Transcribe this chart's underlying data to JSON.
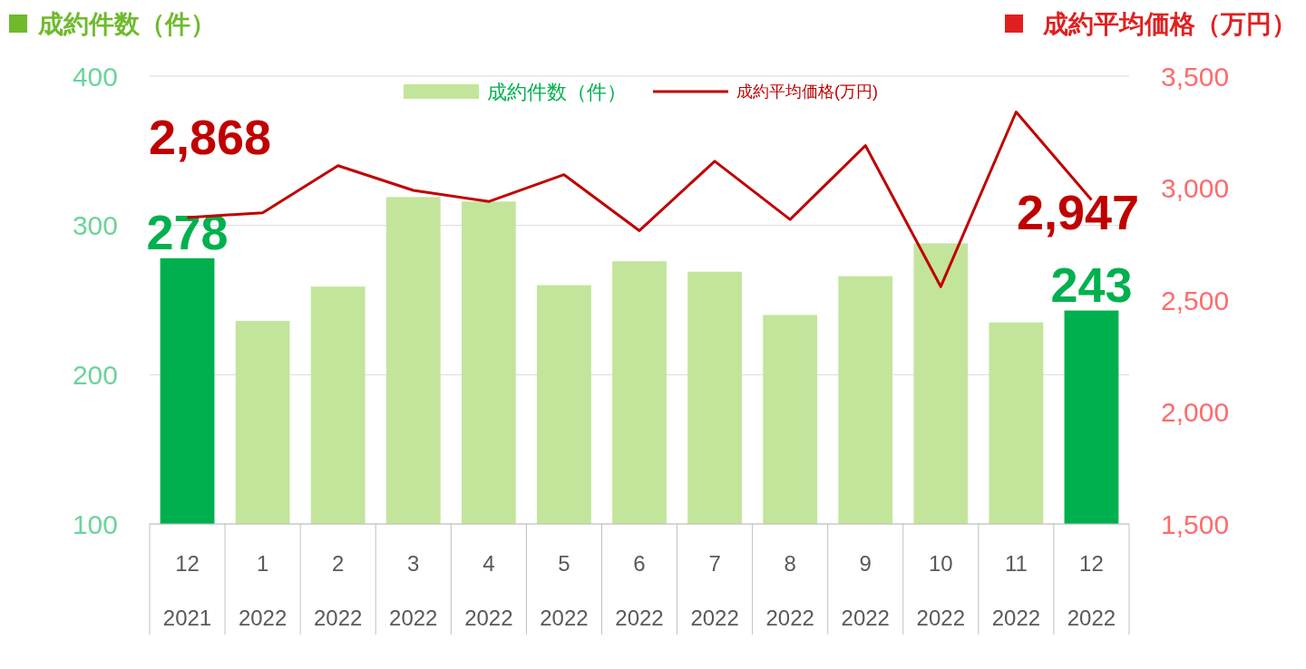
{
  "chart_data": {
    "type": "bar",
    "ylabel": "成約件数（件）",
    "y2label": "成約平均価格（万円）",
    "categories": [
      "12\n2021",
      "1\n2022",
      "2\n2022",
      "3\n2022",
      "4\n2022",
      "5\n2022",
      "6\n2022",
      "7\n2022",
      "8\n2022",
      "9\n2022",
      "10\n2022",
      "11\n2022",
      "12\n2022"
    ],
    "series": [
      {
        "name": "成約件数（件）",
        "color": "#c2e59b",
        "colors": [
          "#00b04f",
          "#c2e59b",
          "#c2e59b",
          "#c2e59b",
          "#c2e59b",
          "#c2e59b",
          "#c2e59b",
          "#c2e59b",
          "#c2e59b",
          "#c2e59b",
          "#c2e59b",
          "#c2e59b",
          "#00b04f"
        ],
        "values": [
          278,
          236,
          259,
          319,
          316,
          260,
          276,
          269,
          240,
          266,
          288,
          235,
          243
        ],
        "value_labels": [
          "278",
          null,
          null,
          null,
          null,
          null,
          null,
          null,
          null,
          null,
          null,
          null,
          "243"
        ]
      },
      {
        "name": "成約平均価格(万円)",
        "type": "line",
        "axis": "y2",
        "color": "#c00000",
        "values": [
          2868,
          2890,
          3100,
          2990,
          2940,
          3060,
          2810,
          3120,
          2860,
          3190,
          2560,
          3340,
          2947
        ],
        "value_labels": [
          "2,868",
          null,
          null,
          null,
          null,
          null,
          null,
          null,
          null,
          null,
          null,
          null,
          "2,947"
        ]
      }
    ],
    "ylim": [
      100,
      400
    ],
    "yticks": [
      100,
      200,
      300,
      400
    ],
    "y2lim": [
      1500,
      3500
    ],
    "y2ticks": [
      {
        "value": 1500,
        "label": "1,500"
      },
      {
        "value": 2000,
        "label": "2,000"
      },
      {
        "value": 2500,
        "label": "2,500"
      },
      {
        "value": 3000,
        "label": "3,000"
      },
      {
        "value": 3500,
        "label": "3,500"
      }
    ],
    "grid": "y",
    "legend": "top"
  }
}
